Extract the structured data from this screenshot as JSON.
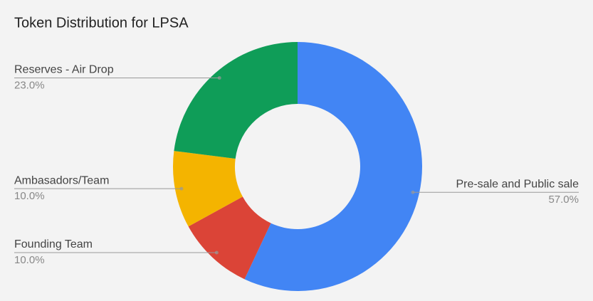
{
  "chart_data": {
    "type": "donut",
    "title": "Token Distribution for LPSA",
    "categories": [
      "Pre-sale and Public sale",
      "Founding Team",
      "Ambasadors/Team",
      "Reserves - Air Drop"
    ],
    "values": [
      57,
      10,
      10,
      23
    ],
    "value_labels": [
      "57.0%",
      "10.0%",
      "10.0%",
      "23.0%"
    ],
    "colors": [
      "#4285f4",
      "#db4437",
      "#f4b400",
      "#0f9d58"
    ]
  }
}
